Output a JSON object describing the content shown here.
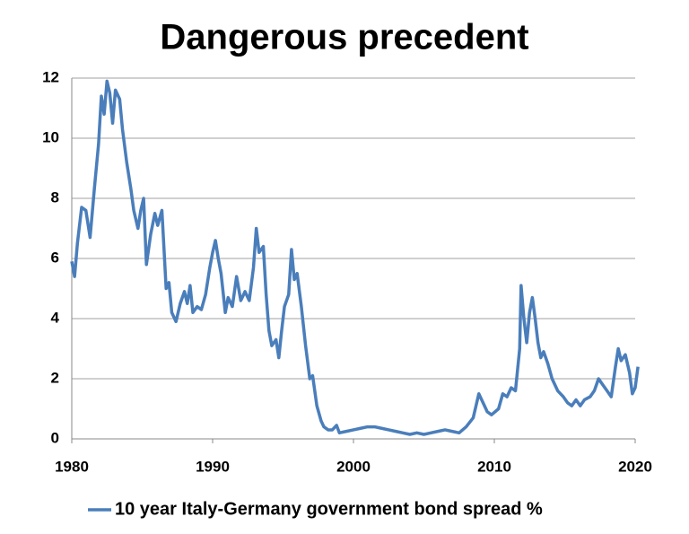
{
  "chart_data": {
    "type": "line",
    "title": "Dangerous precedent",
    "x": [
      1980.0,
      1980.2,
      1980.4,
      1980.7,
      1981.0,
      1981.3,
      1981.6,
      1981.9,
      1982.1,
      1982.3,
      1982.5,
      1982.7,
      1982.9,
      1983.1,
      1983.4,
      1983.6,
      1983.9,
      1984.2,
      1984.4,
      1984.7,
      1984.9,
      1985.1,
      1985.3,
      1985.6,
      1985.9,
      1986.1,
      1986.4,
      1986.7,
      1986.9,
      1987.1,
      1987.4,
      1987.7,
      1988.0,
      1988.2,
      1988.4,
      1988.6,
      1988.9,
      1989.2,
      1989.5,
      1989.8,
      1990.0,
      1990.2,
      1990.4,
      1990.6,
      1990.9,
      1991.1,
      1991.4,
      1991.7,
      1992.0,
      1992.3,
      1992.6,
      1992.9,
      1993.1,
      1993.3,
      1993.6,
      1993.8,
      1994.0,
      1994.2,
      1994.5,
      1994.7,
      1994.9,
      1995.1,
      1995.4,
      1995.6,
      1995.8,
      1996.0,
      1996.3,
      1996.6,
      1996.9,
      1997.1,
      1997.4,
      1997.7,
      1997.9,
      1998.2,
      1998.5,
      1998.8,
      1999.0,
      1999.5,
      2000.0,
      2000.5,
      2001.0,
      2001.5,
      2002.0,
      2002.5,
      2003.0,
      2003.5,
      2004.0,
      2004.5,
      2005.0,
      2005.5,
      2006.0,
      2006.5,
      2007.0,
      2007.5,
      2008.0,
      2008.5,
      2008.9,
      2009.2,
      2009.5,
      2009.8,
      2010.3,
      2010.6,
      2010.9,
      2011.2,
      2011.5,
      2011.8,
      2011.9,
      2012.1,
      2012.3,
      2012.5,
      2012.7,
      2012.9,
      2013.1,
      2013.3,
      2013.5,
      2013.8,
      2014.1,
      2014.5,
      2014.9,
      2015.2,
      2015.5,
      2015.8,
      2016.1,
      2016.4,
      2016.8,
      2017.1,
      2017.4,
      2017.7,
      2018.0,
      2018.3,
      2018.6,
      2018.8,
      2019.0,
      2019.3,
      2019.6,
      2019.8,
      2020.0,
      2020.2
    ],
    "series": [
      {
        "name": "10 year Italy-Germany government bond spread %",
        "color": "#4a7ebb",
        "values": [
          5.9,
          5.4,
          6.5,
          7.7,
          7.6,
          6.7,
          8.3,
          9.8,
          11.4,
          10.8,
          11.9,
          11.5,
          10.5,
          11.6,
          11.3,
          10.3,
          9.2,
          8.3,
          7.6,
          7.0,
          7.6,
          8.0,
          5.8,
          6.8,
          7.5,
          7.1,
          7.6,
          5.0,
          5.2,
          4.2,
          3.9,
          4.5,
          4.9,
          4.5,
          5.1,
          4.2,
          4.4,
          4.3,
          4.8,
          5.7,
          6.2,
          6.6,
          6.0,
          5.5,
          4.2,
          4.7,
          4.4,
          5.4,
          4.6,
          4.9,
          4.6,
          5.7,
          7.0,
          6.2,
          6.4,
          4.8,
          3.6,
          3.1,
          3.3,
          2.7,
          3.6,
          4.4,
          4.8,
          6.3,
          5.3,
          5.5,
          4.4,
          3.1,
          2.0,
          2.1,
          1.1,
          0.6,
          0.4,
          0.3,
          0.3,
          0.45,
          0.2,
          0.25,
          0.3,
          0.35,
          0.4,
          0.4,
          0.35,
          0.3,
          0.25,
          0.2,
          0.15,
          0.2,
          0.15,
          0.2,
          0.25,
          0.3,
          0.25,
          0.2,
          0.4,
          0.7,
          1.5,
          1.2,
          0.9,
          0.8,
          1.0,
          1.5,
          1.4,
          1.7,
          1.6,
          3.0,
          5.1,
          4.0,
          3.2,
          4.2,
          4.7,
          4.0,
          3.2,
          2.7,
          2.9,
          2.5,
          2.0,
          1.6,
          1.4,
          1.2,
          1.1,
          1.3,
          1.1,
          1.3,
          1.4,
          1.6,
          2.0,
          1.8,
          1.6,
          1.4,
          2.4,
          3.0,
          2.6,
          2.8,
          2.2,
          1.5,
          1.7,
          2.4
        ]
      }
    ],
    "xlim": [
      1980,
      2020
    ],
    "xticks": [
      1980,
      1990,
      2000,
      2010,
      2020
    ],
    "ylim": [
      0,
      12
    ],
    "yticks": [
      0,
      2,
      4,
      6,
      8,
      10,
      12
    ],
    "grid": true,
    "legend": "bottom"
  }
}
